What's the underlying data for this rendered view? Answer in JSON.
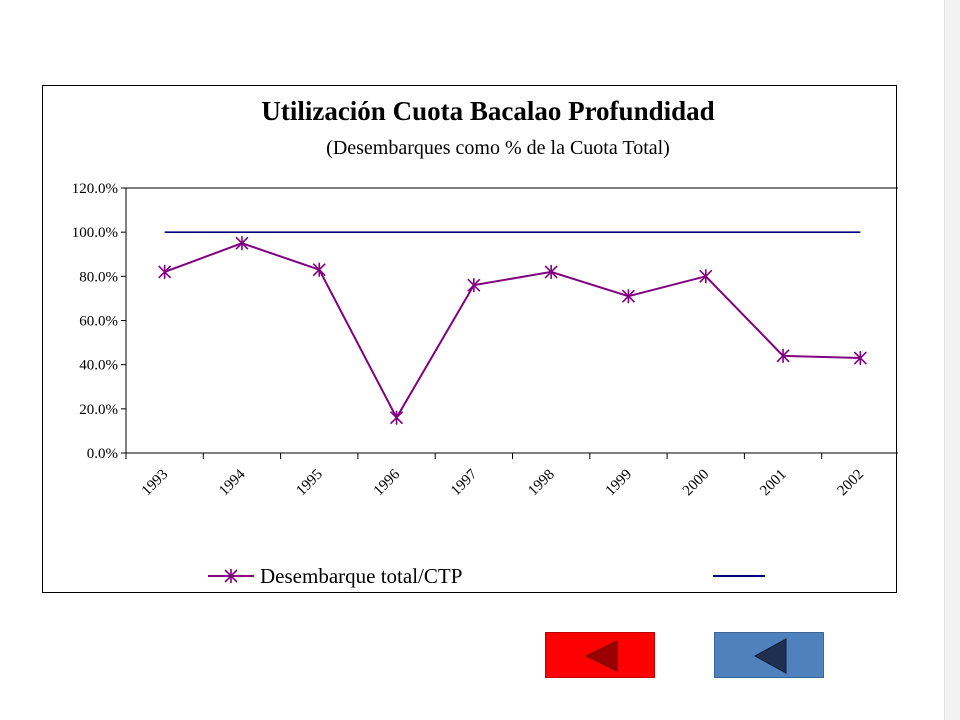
{
  "chart_data": {
    "type": "line",
    "title": "Utilización Cuota Bacalao Profundidad",
    "subtitle": "(Desembarques como % de la Cuota Total)",
    "xlabel": "",
    "ylabel": "",
    "categories": [
      "1993",
      "1994",
      "1995",
      "1996",
      "1997",
      "1998",
      "1999",
      "2000",
      "2001",
      "2002"
    ],
    "ylim": [
      0,
      120
    ],
    "yticks": [
      "0.0%",
      "20.0%",
      "40.0%",
      "60.0%",
      "80.0%",
      "100.0%",
      "120.0%"
    ],
    "grid": false,
    "legend_position": "bottom",
    "series": [
      {
        "name": "Desembarque total/CTP",
        "color": "#800080",
        "marker": "asterisk",
        "values": [
          82,
          95,
          83,
          16,
          76,
          82,
          71,
          80,
          44,
          43
        ]
      },
      {
        "name": "",
        "color": "#000080",
        "marker": "none",
        "values": [
          100,
          100,
          100,
          100,
          100,
          100,
          100,
          100,
          100,
          100
        ]
      }
    ]
  },
  "nav": {
    "back_red_icon": "left-triangle-icon",
    "back_blue_icon": "left-triangle-icon",
    "red_color": "#ff0000",
    "blue_color": "#4f81bd"
  }
}
